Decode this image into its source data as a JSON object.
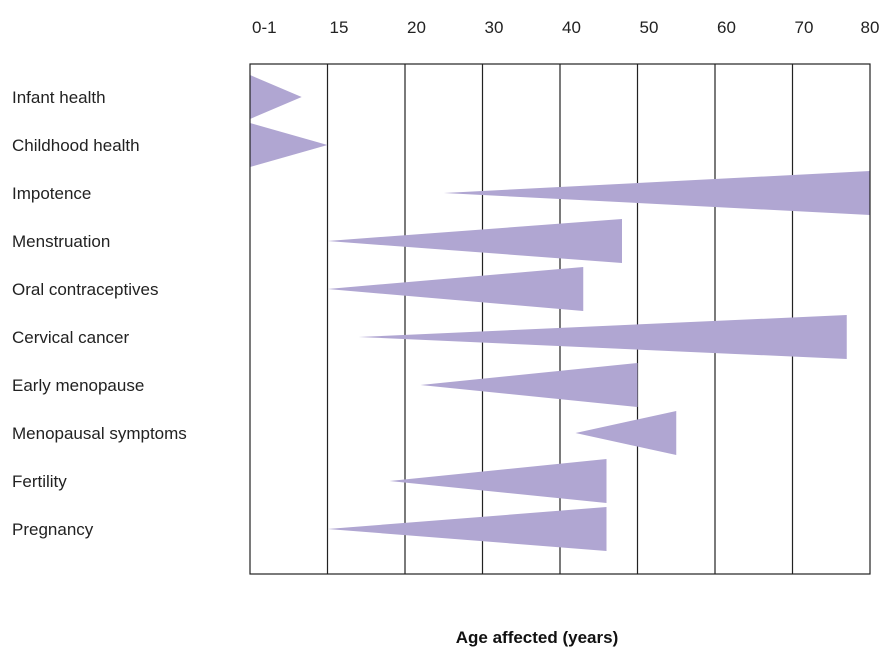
{
  "chart_data": {
    "type": "bar",
    "xlabel": "Age affected (years)",
    "x_ticks": [
      "0-1",
      "15",
      "20",
      "30",
      "40",
      "50",
      "60",
      "70",
      "80"
    ],
    "color": "#b0a6d2",
    "grid": true,
    "categories": [
      "Infant health",
      "Childhood health",
      "Impotence",
      "Menstruation",
      "Oral contraceptives",
      "Cervical cancer",
      "Early menopause",
      "Menopausal symptoms",
      "Fertility",
      "Pregnancy"
    ],
    "ranges": [
      {
        "start": 0,
        "end": 10,
        "wide_end": "start"
      },
      {
        "start": 0,
        "end": 15,
        "wide_end": "start"
      },
      {
        "start": 25,
        "end": 80,
        "wide_end": "end"
      },
      {
        "start": 15,
        "end": 48,
        "wide_end": "end"
      },
      {
        "start": 15,
        "end": 43,
        "wide_end": "end"
      },
      {
        "start": 17,
        "end": 77,
        "wide_end": "end"
      },
      {
        "start": 22,
        "end": 50,
        "wide_end": "end"
      },
      {
        "start": 42,
        "end": 55,
        "wide_end": "end"
      },
      {
        "start": 19,
        "end": 46,
        "wide_end": "end"
      },
      {
        "start": 15,
        "end": 46,
        "wide_end": "end"
      }
    ]
  }
}
